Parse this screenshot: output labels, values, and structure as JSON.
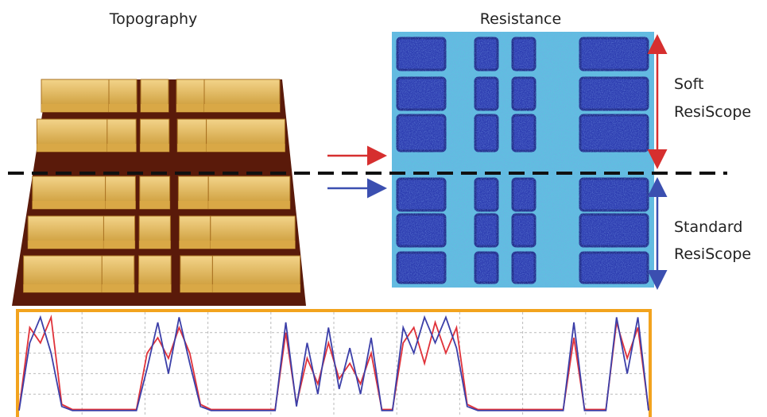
{
  "titles": {
    "topography": "Topography",
    "resistance": "Resistance"
  },
  "labels": {
    "soft": [
      "Soft",
      "ResiScope"
    ],
    "standard": [
      "Standard",
      "ResiScope"
    ]
  },
  "chart_data": {
    "type": "line",
    "grid": true,
    "ylim": [
      0,
      1
    ],
    "series": [
      {
        "color": "#e0323a",
        "values": [
          0.05,
          0.85,
          0.7,
          0.95,
          0.1,
          0.05,
          0.05,
          0.05,
          0.05,
          0.05,
          0.05,
          0.05,
          0.6,
          0.75,
          0.55,
          0.85,
          0.6,
          0.1,
          0.05,
          0.05,
          0.05,
          0.05,
          0.05,
          0.05,
          0.05,
          0.8,
          0.1,
          0.55,
          0.3,
          0.7,
          0.35,
          0.5,
          0.3,
          0.6,
          0.05,
          0.05,
          0.7,
          0.85,
          0.5,
          0.9,
          0.6,
          0.85,
          0.1,
          0.05,
          0.05,
          0.05,
          0.05,
          0.05,
          0.05,
          0.05,
          0.05,
          0.05,
          0.75,
          0.05,
          0.05,
          0.05,
          0.9,
          0.55,
          0.85,
          0.05
        ]
      },
      {
        "color": "#3c3fa8",
        "values": [
          0.04,
          0.7,
          0.95,
          0.6,
          0.08,
          0.04,
          0.04,
          0.04,
          0.04,
          0.04,
          0.04,
          0.04,
          0.45,
          0.9,
          0.4,
          0.95,
          0.5,
          0.08,
          0.04,
          0.04,
          0.04,
          0.04,
          0.04,
          0.04,
          0.04,
          0.9,
          0.08,
          0.7,
          0.2,
          0.85,
          0.25,
          0.65,
          0.2,
          0.75,
          0.04,
          0.04,
          0.85,
          0.6,
          0.95,
          0.7,
          0.95,
          0.65,
          0.08,
          0.04,
          0.04,
          0.04,
          0.04,
          0.04,
          0.04,
          0.04,
          0.04,
          0.04,
          0.9,
          0.04,
          0.04,
          0.04,
          0.95,
          0.4,
          0.95,
          0.04
        ]
      }
    ]
  }
}
